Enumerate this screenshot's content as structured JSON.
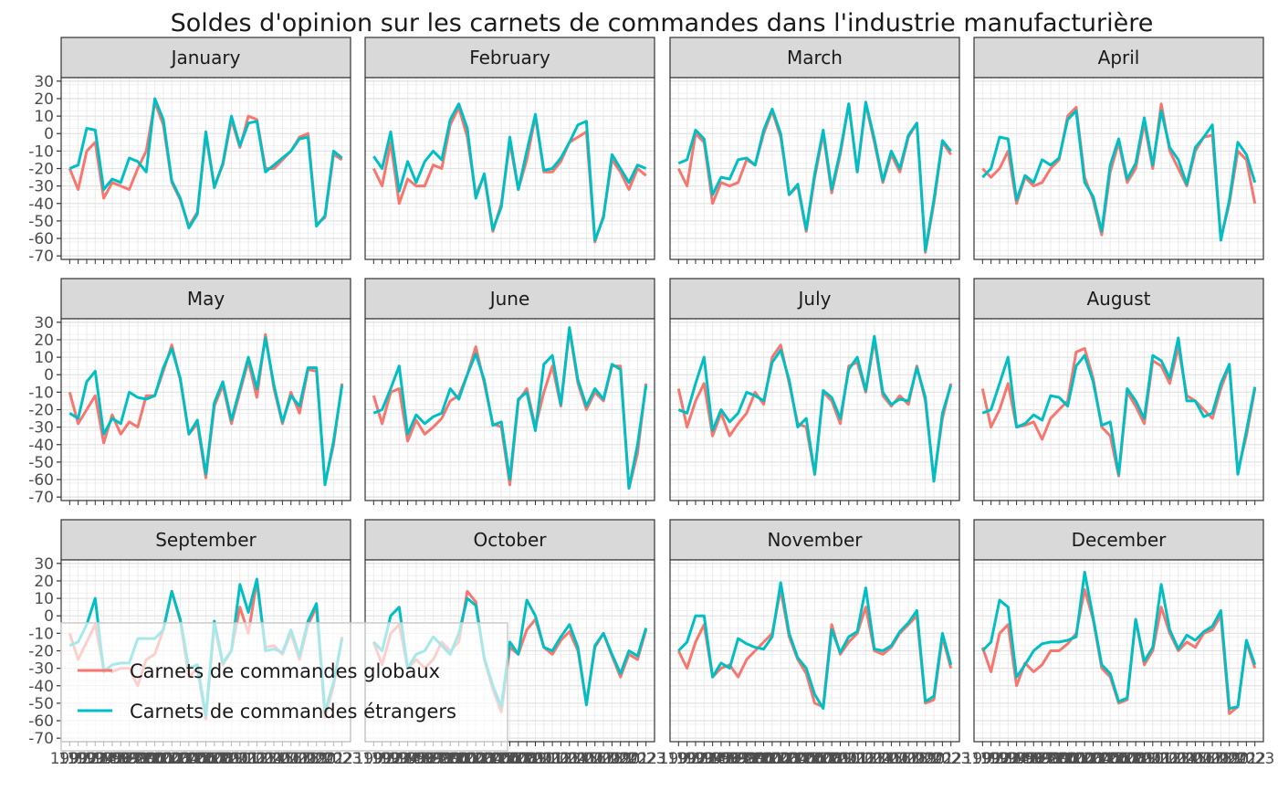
{
  "chart_data": {
    "type": "line",
    "title": "Soldes d'opinion sur les carnets de commandes dans l'industrie manufacturière",
    "xlabel": "",
    "ylabel": "",
    "ylim": [
      -72,
      32
    ],
    "yticks": [
      30,
      20,
      10,
      0,
      -10,
      -20,
      -30,
      -40,
      -50,
      -60,
      -70
    ],
    "xlim": [
      1990,
      2024
    ],
    "grid": true,
    "legend_position": "bottom-left",
    "series_colors": {
      "global": "#F8766D",
      "foreign": "#00BFC4"
    },
    "legend": [
      "Carnets de commandes globaux",
      "Carnets de commandes étrangers"
    ],
    "x": [
      1991,
      1992,
      1993,
      1994,
      1995,
      1996,
      1997,
      1998,
      1999,
      2000,
      2001,
      2002,
      2003,
      2004,
      2005,
      2006,
      2007,
      2008,
      2009,
      2010,
      2011,
      2012,
      2013,
      2014,
      2015,
      2016,
      2017,
      2018,
      2019,
      2020,
      2021,
      2022,
      2023
    ],
    "facets": [
      {
        "label": "January",
        "global": [
          -20,
          -32,
          -10,
          -5,
          -37,
          -28,
          -30,
          -32,
          -20,
          -10,
          18,
          5,
          -28,
          -38,
          -53,
          -45,
          -1,
          -30,
          -18,
          8,
          -8,
          10,
          8,
          -20,
          -20,
          -15,
          -10,
          -2,
          0,
          -52,
          -48,
          -12,
          -15
        ],
        "foreign": [
          -20,
          -18,
          3,
          2,
          -32,
          -26,
          -28,
          -14,
          -16,
          -22,
          20,
          8,
          -27,
          -37,
          -54,
          -46,
          1,
          -31,
          -17,
          10,
          -7,
          6,
          7,
          -22,
          -18,
          -14,
          -10,
          -3,
          -2,
          -53,
          -47,
          -10,
          -14
        ]
      },
      {
        "label": "February",
        "global": [
          -20,
          -30,
          -5,
          -40,
          -26,
          -30,
          -30,
          -18,
          -20,
          5,
          15,
          -2,
          -35,
          -24,
          -56,
          -40,
          -5,
          -32,
          -15,
          10,
          -22,
          -22,
          -16,
          -5,
          -2,
          1,
          -62,
          -47,
          -15,
          -22,
          -32,
          -20,
          -24
        ],
        "foreign": [
          -13,
          -20,
          1,
          -33,
          -16,
          -28,
          -16,
          -10,
          -15,
          8,
          17,
          3,
          -37,
          -23,
          -55,
          -42,
          -2,
          -32,
          -10,
          11,
          -21,
          -20,
          -14,
          -5,
          5,
          7,
          -61,
          -48,
          -12,
          -20,
          -28,
          -18,
          -20
        ]
      },
      {
        "label": "March",
        "global": [
          -20,
          -30,
          0,
          -5,
          -40,
          -28,
          -30,
          -28,
          -15,
          -18,
          0,
          13,
          -2,
          -35,
          -30,
          -56,
          -25,
          0,
          -34,
          -12,
          17,
          -22,
          17,
          -5,
          -28,
          -12,
          -22,
          -2,
          6,
          -68,
          -40,
          -5,
          -12
        ],
        "foreign": [
          -17,
          -15,
          2,
          -3,
          -35,
          -25,
          -26,
          -15,
          -14,
          -18,
          2,
          14,
          0,
          -35,
          -29,
          -55,
          -23,
          2,
          -32,
          -10,
          17,
          -22,
          18,
          -3,
          -27,
          -10,
          -20,
          -1,
          6,
          -67,
          -38,
          -4,
          -10
        ]
      },
      {
        "label": "April",
        "global": [
          -20,
          -25,
          -20,
          -10,
          -40,
          -25,
          -30,
          -28,
          -20,
          -15,
          10,
          15,
          -25,
          -38,
          -58,
          -22,
          -5,
          -28,
          -20,
          6,
          -20,
          17,
          -10,
          -20,
          -30,
          -10,
          -2,
          -1,
          -60,
          -40,
          -10,
          -15,
          -40
        ],
        "foreign": [
          -25,
          -20,
          -2,
          -3,
          -38,
          -24,
          -28,
          -15,
          -18,
          -14,
          8,
          13,
          -28,
          -36,
          -56,
          -18,
          -3,
          -26,
          -17,
          9,
          -18,
          13,
          -8,
          -15,
          -29,
          -8,
          -2,
          5,
          -61,
          -38,
          -5,
          -12,
          -28
        ]
      },
      {
        "label": "May",
        "global": [
          -10,
          -28,
          -20,
          -12,
          -39,
          -23,
          -34,
          -27,
          -30,
          -12,
          -12,
          2,
          17,
          -3,
          -34,
          -28,
          -59,
          -18,
          -6,
          -28,
          -10,
          8,
          -13,
          23,
          -8,
          -28,
          -10,
          -22,
          3,
          2,
          -62,
          -40,
          -5
        ],
        "foreign": [
          -22,
          -25,
          -4,
          2,
          -34,
          -25,
          -28,
          -10,
          -13,
          -14,
          -12,
          4,
          15,
          -2,
          -34,
          -26,
          -57,
          -16,
          -4,
          -26,
          -8,
          10,
          -8,
          21,
          -6,
          -27,
          -12,
          -18,
          4,
          4,
          -63,
          -38,
          -6
        ]
      },
      {
        "label": "June",
        "global": [
          -12,
          -28,
          -10,
          -8,
          -38,
          -26,
          -34,
          -30,
          -25,
          -15,
          -12,
          0,
          16,
          -5,
          -28,
          -30,
          -63,
          -15,
          -8,
          -30,
          -10,
          5,
          -18,
          26,
          -5,
          -20,
          -10,
          -15,
          5,
          5,
          -65,
          -45,
          -5
        ],
        "foreign": [
          -22,
          -20,
          -8,
          5,
          -34,
          -23,
          -28,
          -24,
          -22,
          -8,
          -14,
          0,
          12,
          -3,
          -29,
          -27,
          -60,
          -14,
          -10,
          -32,
          6,
          11,
          -17,
          27,
          -3,
          -18,
          -8,
          -14,
          6,
          3,
          -65,
          -40,
          -6
        ]
      },
      {
        "label": "July",
        "global": [
          -8,
          -30,
          -15,
          -5,
          -35,
          -22,
          -35,
          -28,
          -22,
          -10,
          -17,
          10,
          17,
          -5,
          -28,
          -30,
          -57,
          -10,
          -15,
          -28,
          5,
          7,
          -10,
          20,
          -12,
          -18,
          -12,
          -17,
          5,
          -15,
          -60,
          -25,
          -5
        ],
        "foreign": [
          -20,
          -22,
          -5,
          10,
          -32,
          -20,
          -27,
          -22,
          -10,
          -12,
          -15,
          7,
          14,
          -3,
          -30,
          -25,
          -57,
          -9,
          -13,
          -25,
          3,
          10,
          -9,
          22,
          -10,
          -17,
          -14,
          -15,
          4,
          -13,
          -61,
          -22,
          -6
        ]
      },
      {
        "label": "August",
        "global": [
          -8,
          -30,
          -20,
          -5,
          -30,
          -29,
          -27,
          -37,
          -25,
          -20,
          -15,
          13,
          15,
          -2,
          -30,
          -35,
          -58,
          -10,
          -18,
          -28,
          8,
          5,
          -5,
          16,
          -12,
          -15,
          -20,
          -25,
          -8,
          5,
          -55,
          -35,
          -8
        ],
        "foreign": [
          -22,
          -20,
          -5,
          10,
          -30,
          -28,
          -23,
          -26,
          -12,
          -13,
          -18,
          5,
          11,
          -4,
          -29,
          -27,
          -57,
          -8,
          -15,
          -25,
          11,
          8,
          -2,
          21,
          -15,
          -15,
          -24,
          -22,
          -5,
          6,
          -57,
          -32,
          -7
        ]
      },
      {
        "label": "September",
        "global": [
          -10,
          -25,
          -15,
          -5,
          -30,
          -32,
          -30,
          -30,
          -40,
          -25,
          -22,
          -8,
          14,
          -3,
          -35,
          -30,
          -59,
          -5,
          -28,
          -20,
          5,
          -10,
          20,
          -18,
          -17,
          -22,
          -10,
          -25,
          -5,
          5,
          -58,
          -40,
          -12
        ],
        "foreign": [
          -17,
          -15,
          -5,
          10,
          -32,
          -28,
          -27,
          -27,
          -13,
          -13,
          -13,
          -8,
          14,
          -2,
          -30,
          -28,
          -57,
          -3,
          -27,
          -20,
          18,
          2,
          21,
          -20,
          -19,
          -21,
          -8,
          -23,
          -3,
          7,
          -55,
          -38,
          -13
        ]
      },
      {
        "label": "October",
        "global": [
          -15,
          -28,
          -10,
          -5,
          -30,
          -25,
          -30,
          -25,
          -15,
          -20,
          -15,
          14,
          8,
          -25,
          -42,
          -55,
          -18,
          -22,
          -8,
          -2,
          -18,
          -22,
          -14,
          -9,
          -20,
          -50,
          -18,
          -10,
          -23,
          -35,
          -22,
          -25,
          -8
        ],
        "foreign": [
          -15,
          -20,
          0,
          5,
          -30,
          -22,
          -20,
          -12,
          -17,
          -22,
          -10,
          10,
          6,
          -24,
          -40,
          -52,
          -15,
          -22,
          9,
          0,
          -18,
          -20,
          -12,
          -5,
          -18,
          -51,
          -17,
          -10,
          -22,
          -33,
          -20,
          -23,
          -7
        ]
      },
      {
        "label": "November",
        "global": [
          -20,
          -30,
          -15,
          -5,
          -35,
          -30,
          -28,
          -35,
          -25,
          -20,
          -15,
          -10,
          15,
          -12,
          -25,
          -33,
          -50,
          -52,
          -5,
          -22,
          -15,
          -10,
          5,
          -20,
          -22,
          -18,
          -10,
          -5,
          0,
          -50,
          -48,
          -12,
          -30
        ],
        "foreign": [
          -20,
          -15,
          0,
          0,
          -35,
          -27,
          -30,
          -13,
          -16,
          -18,
          -19,
          -12,
          19,
          -10,
          -24,
          -30,
          -45,
          -53,
          -8,
          -21,
          -12,
          -9,
          16,
          -19,
          -20,
          -17,
          -9,
          -4,
          3,
          -49,
          -46,
          -10,
          -28
        ]
      },
      {
        "label": "December",
        "global": [
          -18,
          -32,
          -10,
          -5,
          -40,
          -27,
          -32,
          -28,
          -20,
          -20,
          -16,
          -10,
          15,
          -2,
          -30,
          -35,
          -50,
          -48,
          -2,
          -28,
          -20,
          5,
          -10,
          -20,
          -15,
          -18,
          -10,
          -8,
          0,
          -56,
          -52,
          -15,
          -30
        ],
        "foreign": [
          -20,
          -15,
          9,
          5,
          -35,
          -28,
          -20,
          -16,
          -15,
          -15,
          -14,
          -12,
          25,
          -1,
          -28,
          -33,
          -49,
          -47,
          -2,
          -26,
          -18,
          18,
          -8,
          -19,
          -11,
          -14,
          -9,
          -6,
          3,
          -53,
          -52,
          -14,
          -28
        ]
      }
    ]
  }
}
